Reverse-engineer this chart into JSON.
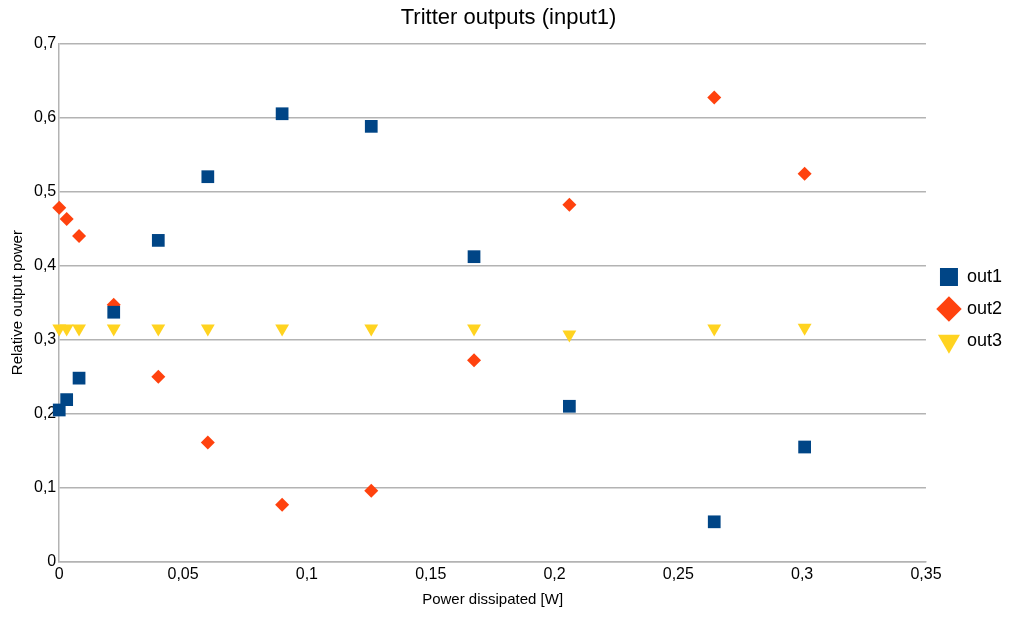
{
  "chart_data": {
    "type": "scatter",
    "title": "Tritter outputs (input1)",
    "xlabel": "Power dissipated [W]",
    "ylabel": "Relative output power",
    "x": [
      0,
      0.003,
      0.008,
      0.022,
      0.04,
      0.06,
      0.09,
      0.126,
      0.1675,
      0.206,
      0.2645,
      0.301
    ],
    "series": [
      {
        "name": "out1",
        "color": "#004586",
        "marker": "square",
        "values": [
          0.205,
          0.219,
          0.248,
          0.337,
          0.434,
          0.52,
          0.605,
          0.588,
          0.412,
          0.21,
          0.054,
          0.155
        ]
      },
      {
        "name": "out2",
        "color": "#ff420e",
        "marker": "diamond",
        "values": [
          0.478,
          0.463,
          0.44,
          0.347,
          0.25,
          0.161,
          0.077,
          0.096,
          0.272,
          0.482,
          0.627,
          0.524
        ]
      },
      {
        "name": "out3",
        "color": "#ffd320",
        "marker": "triangle-down",
        "values": [
          0.315,
          0.315,
          0.315,
          0.315,
          0.315,
          0.315,
          0.315,
          0.315,
          0.315,
          0.307,
          0.315,
          0.316
        ]
      }
    ],
    "xlim": [
      0,
      0.35
    ],
    "xticks": [
      0,
      {
        "value": 0.05,
        "label": "0,05"
      },
      {
        "value": 0.1,
        "label": "0,1"
      },
      {
        "value": 0.15,
        "label": "0,15"
      },
      {
        "value": 0.2,
        "label": "0,2"
      },
      {
        "value": 0.25,
        "label": "0,25"
      },
      {
        "value": 0.3,
        "label": "0,3"
      },
      {
        "value": 0.35,
        "label": "0,35"
      }
    ],
    "ylim": [
      0,
      0.7
    ],
    "yticks": [
      0,
      {
        "value": 0.1,
        "label": "0,1"
      },
      {
        "value": 0.2,
        "label": "0,2"
      },
      {
        "value": 0.3,
        "label": "0,3"
      },
      {
        "value": 0.4,
        "label": "0,4"
      },
      {
        "value": 0.5,
        "label": "0,5"
      },
      {
        "value": 0.6,
        "label": "0,6"
      },
      {
        "value": 0.7,
        "label": "0,7"
      }
    ],
    "grid": "y",
    "legend": "right"
  }
}
